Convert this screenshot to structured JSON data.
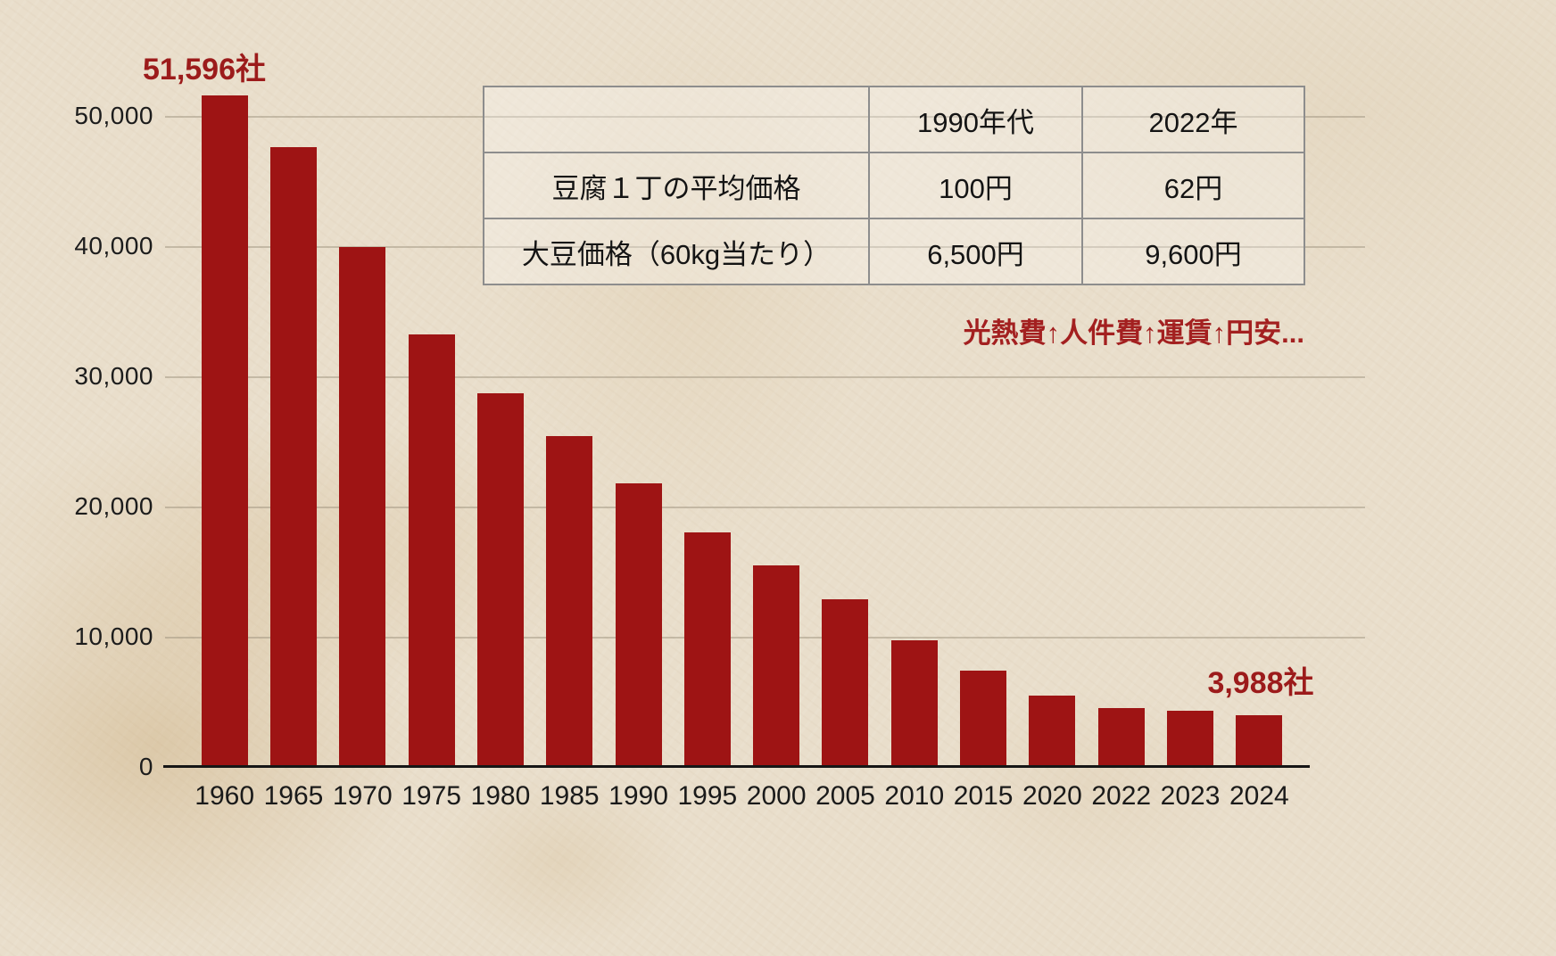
{
  "chart_data": {
    "type": "bar",
    "title": "",
    "xlabel": "",
    "ylabel": "",
    "unit": "社",
    "categories": [
      "1960",
      "1965",
      "1970",
      "1975",
      "1980",
      "1985",
      "1990",
      "1995",
      "2000",
      "2005",
      "2010",
      "2015",
      "2020",
      "2022",
      "2023",
      "2024"
    ],
    "values": [
      51596,
      47600,
      39900,
      33200,
      28700,
      25400,
      21800,
      18000,
      15500,
      12900,
      9700,
      7400,
      5500,
      4500,
      4300,
      3988
    ],
    "ylim": [
      0,
      50000
    ],
    "ytick_interval": 10000,
    "yticks": [
      "0",
      "10,000",
      "20,000",
      "30,000",
      "40,000",
      "50,000"
    ],
    "grid": "horizontal",
    "legend": "none",
    "bar_color": "#9e1414",
    "callout_color": "#9c1b1b",
    "first_bar_label": "51,596社",
    "last_bar_label": "3,988社"
  },
  "table": {
    "headers": [
      "",
      "1990年代",
      "2022年"
    ],
    "rows": [
      [
        "豆腐１丁の平均価格",
        "100円",
        "62円"
      ],
      [
        "大豆価格（60kg当たり）",
        "6,500円",
        "9,600円"
      ]
    ]
  },
  "annotation": {
    "cost_note": "光熱費↑人件費↑運賃↑円安..."
  }
}
